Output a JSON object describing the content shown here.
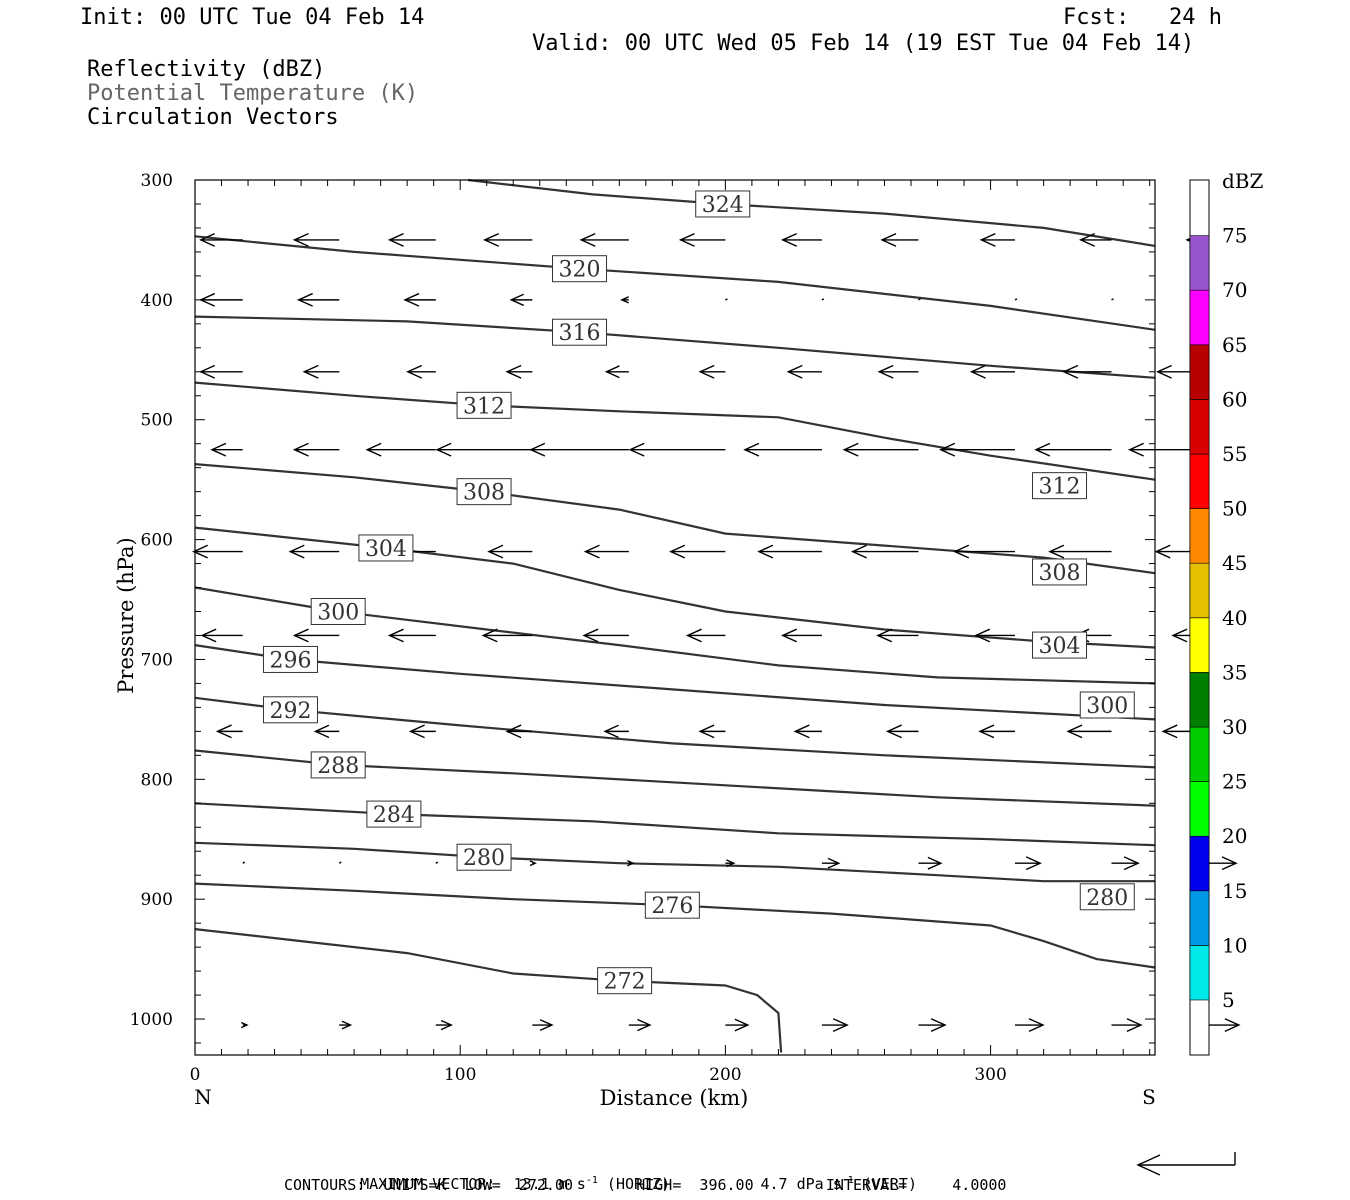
{
  "header": {
    "init": "Init: 00 UTC Tue 04 Feb 14",
    "fcst": "Fcst:   24 h",
    "valid": "Valid: 00 UTC Wed 05 Feb 14 (19 EST Tue 04 Feb 14)"
  },
  "legend": {
    "line1": "Reflectivity (dBZ)",
    "line2": "Potential Temperature (K)",
    "line3": "Circulation Vectors"
  },
  "chart_data": {
    "type": "line",
    "subtype": "vertical cross-section (contours + vectors)",
    "xlabel": "Distance (km)",
    "ylabel": "Pressure (hPa)",
    "xlim": [
      0,
      362
    ],
    "ylim": [
      300,
      1030
    ],
    "y_inverted": true,
    "x_ticks": [
      0,
      100,
      200,
      300
    ],
    "y_ticks": [
      300,
      400,
      500,
      600,
      700,
      800,
      900,
      1000
    ],
    "x_end_labels": {
      "left": "N",
      "right": "S"
    },
    "contours": [
      {
        "value": 272,
        "label": "272",
        "label_at": [
          162,
          968
        ],
        "points": [
          [
            0,
            925
          ],
          [
            40,
            935
          ],
          [
            80,
            945
          ],
          [
            120,
            962
          ],
          [
            160,
            968
          ],
          [
            200,
            972
          ],
          [
            212,
            980
          ],
          [
            220,
            995
          ],
          [
            221,
            1028
          ]
        ]
      },
      {
        "value": 276,
        "label": "276",
        "label_at": [
          180,
          905
        ],
        "points": [
          [
            0,
            887
          ],
          [
            60,
            893
          ],
          [
            120,
            900
          ],
          [
            180,
            905
          ],
          [
            240,
            912
          ],
          [
            300,
            922
          ],
          [
            320,
            935
          ],
          [
            340,
            950
          ],
          [
            362,
            957
          ]
        ]
      },
      {
        "value": 280,
        "label": "280",
        "label_at": [
          109,
          865
        ],
        "points": [
          [
            0,
            853
          ],
          [
            60,
            858
          ],
          [
            109,
            865
          ],
          [
            160,
            870
          ],
          [
            220,
            873
          ],
          [
            280,
            880
          ],
          [
            320,
            885
          ],
          [
            362,
            885
          ]
        ]
      },
      {
        "value": 280,
        "label": "280",
        "label_at": [
          344,
          898
        ],
        "points": []
      },
      {
        "value": 284,
        "label": "284",
        "label_at": [
          75,
          829
        ],
        "points": [
          [
            0,
            820
          ],
          [
            75,
            829
          ],
          [
            150,
            835
          ],
          [
            220,
            845
          ],
          [
            300,
            850
          ],
          [
            362,
            855
          ]
        ]
      },
      {
        "value": 288,
        "label": "288",
        "label_at": [
          54,
          788
        ],
        "points": [
          [
            0,
            776
          ],
          [
            54,
            788
          ],
          [
            120,
            795
          ],
          [
            200,
            805
          ],
          [
            280,
            815
          ],
          [
            362,
            822
          ]
        ]
      },
      {
        "value": 292,
        "label": "292",
        "label_at": [
          36,
          742
        ],
        "points": [
          [
            0,
            732
          ],
          [
            36,
            742
          ],
          [
            100,
            755
          ],
          [
            180,
            770
          ],
          [
            260,
            780
          ],
          [
            362,
            790
          ]
        ]
      },
      {
        "value": 296,
        "label": "296",
        "label_at": [
          36,
          700
        ],
        "points": [
          [
            0,
            688
          ],
          [
            36,
            700
          ],
          [
            100,
            712
          ],
          [
            180,
            725
          ],
          [
            260,
            738
          ],
          [
            362,
            750
          ]
        ]
      },
      {
        "value": 300,
        "label": "300",
        "label_at": [
          54,
          660
        ],
        "points": [
          [
            0,
            640
          ],
          [
            54,
            660
          ],
          [
            110,
            675
          ],
          [
            160,
            688
          ],
          [
            220,
            705
          ],
          [
            280,
            715
          ],
          [
            362,
            720
          ]
        ]
      },
      {
        "value": 300,
        "label": "300",
        "label_at": [
          344,
          738
        ],
        "points": []
      },
      {
        "value": 304,
        "label": "304",
        "label_at": [
          72,
          607
        ],
        "points": [
          [
            0,
            590
          ],
          [
            72,
            607
          ],
          [
            120,
            620
          ],
          [
            160,
            642
          ],
          [
            200,
            660
          ],
          [
            260,
            675
          ],
          [
            320,
            685
          ],
          [
            362,
            690
          ]
        ]
      },
      {
        "value": 304,
        "label": "304",
        "label_at": [
          326,
          688
        ],
        "points": []
      },
      {
        "value": 308,
        "label": "308",
        "label_at": [
          109,
          560
        ],
        "points": [
          [
            0,
            537
          ],
          [
            60,
            548
          ],
          [
            109,
            560
          ],
          [
            160,
            575
          ],
          [
            200,
            595
          ],
          [
            260,
            605
          ],
          [
            320,
            615
          ],
          [
            362,
            628
          ]
        ]
      },
      {
        "value": 308,
        "label": "308",
        "label_at": [
          326,
          627
        ],
        "points": []
      },
      {
        "value": 312,
        "label": "312",
        "label_at": [
          109,
          488
        ],
        "points": [
          [
            0,
            469
          ],
          [
            60,
            480
          ],
          [
            109,
            488
          ],
          [
            160,
            493
          ],
          [
            220,
            498
          ],
          [
            260,
            515
          ],
          [
            300,
            530
          ],
          [
            362,
            550
          ]
        ]
      },
      {
        "value": 312,
        "label": "312",
        "label_at": [
          326,
          555
        ],
        "points": []
      },
      {
        "value": 316,
        "label": "316",
        "label_at": [
          145,
          427
        ],
        "points": [
          [
            0,
            414
          ],
          [
            80,
            418
          ],
          [
            145,
            427
          ],
          [
            220,
            440
          ],
          [
            300,
            455
          ],
          [
            362,
            465
          ]
        ]
      },
      {
        "value": 320,
        "label": "320",
        "label_at": [
          145,
          374
        ],
        "points": [
          [
            0,
            347
          ],
          [
            60,
            360
          ],
          [
            145,
            374
          ],
          [
            220,
            385
          ],
          [
            300,
            405
          ],
          [
            362,
            425
          ]
        ]
      },
      {
        "value": 324,
        "label": "324",
        "label_at": [
          199,
          320
        ],
        "points": [
          [
            103,
            300
          ],
          [
            150,
            312
          ],
          [
            199,
            320
          ],
          [
            260,
            328
          ],
          [
            320,
            340
          ],
          [
            362,
            355
          ]
        ]
      }
    ],
    "vectors_m_s": [
      {
        "p": 350,
        "u": [
          -3.0,
          -3.2,
          -3.3,
          -3.4,
          -3.4,
          -3.2,
          -2.8,
          -2.6,
          -2.4,
          -2.2,
          -1.5
        ]
      },
      {
        "p": 400,
        "u": [
          -3.0,
          -2.9,
          -2.2,
          -1.5,
          -0.5,
          -0.1,
          0.0,
          0.0,
          0.0,
          0.0,
          -0.5
        ]
      },
      {
        "p": 460,
        "u": [
          -3.0,
          -2.5,
          -2.0,
          -1.8,
          -1.6,
          -1.8,
          -2.4,
          -2.8,
          -3.1,
          -3.4,
          -3.6
        ]
      },
      {
        "p": 525,
        "u": [
          -2.2,
          -3.2,
          -4.9,
          -6.8,
          -7.0,
          -6.8,
          -5.5,
          -5.3,
          -5.3,
          -5.4,
          -5.6
        ]
      },
      {
        "p": 610,
        "u": [
          -3.5,
          -3.5,
          -3.2,
          -3.1,
          -3.1,
          -3.9,
          -4.5,
          -4.7,
          -4.3,
          -4.4,
          -3.7
        ]
      },
      {
        "p": 680,
        "u": [
          -2.9,
          -3.2,
          -3.3,
          -3.5,
          -3.2,
          -2.7,
          -2.8,
          -2.9,
          -2.8,
          -2.6,
          -2.5
        ]
      },
      {
        "p": 760,
        "u": [
          -1.8,
          -1.7,
          -1.8,
          -1.8,
          -1.7,
          -1.8,
          -1.9,
          -2.2,
          -2.5,
          -3.1,
          -3.2
        ]
      },
      {
        "p": 870,
        "u": [
          0.1,
          0.1,
          0.1,
          0.2,
          0.3,
          0.6,
          1.2,
          1.6,
          1.8,
          1.9,
          2.0
        ]
      },
      {
        "p": 1005,
        "u": [
          0.3,
          0.8,
          1.1,
          1.4,
          1.5,
          1.6,
          1.8,
          1.9,
          2.0,
          2.1,
          2.2
        ]
      }
    ],
    "colorbar": {
      "label": "dBZ",
      "ticks": [
        "5",
        "10",
        "15",
        "20",
        "25",
        "30",
        "35",
        "40",
        "45",
        "50",
        "55",
        "60",
        "65",
        "70",
        "75"
      ],
      "colors": [
        "#00e8e8",
        "#0099e6",
        "#0000ee",
        "#00ff00",
        "#00cc00",
        "#008000",
        "#ffff00",
        "#e6c000",
        "#ff8800",
        "#ff0000",
        "#d80000",
        "#b80000",
        "#ff00ff",
        "#9955cc"
      ]
    },
    "footer": {
      "max_vector_prefix": "MAXIMUM VECTOR:  13.1 m s",
      "max_vector_mid": " (HORIZ)          4.7 dPa s",
      "max_vector_suffix": " (VERT)",
      "superscript": "-1",
      "contours_line": "CONTOURS:  UNITS=K  LOW=  272.00       HIGH=  396.00        INTERVAL=     4.0000"
    }
  }
}
